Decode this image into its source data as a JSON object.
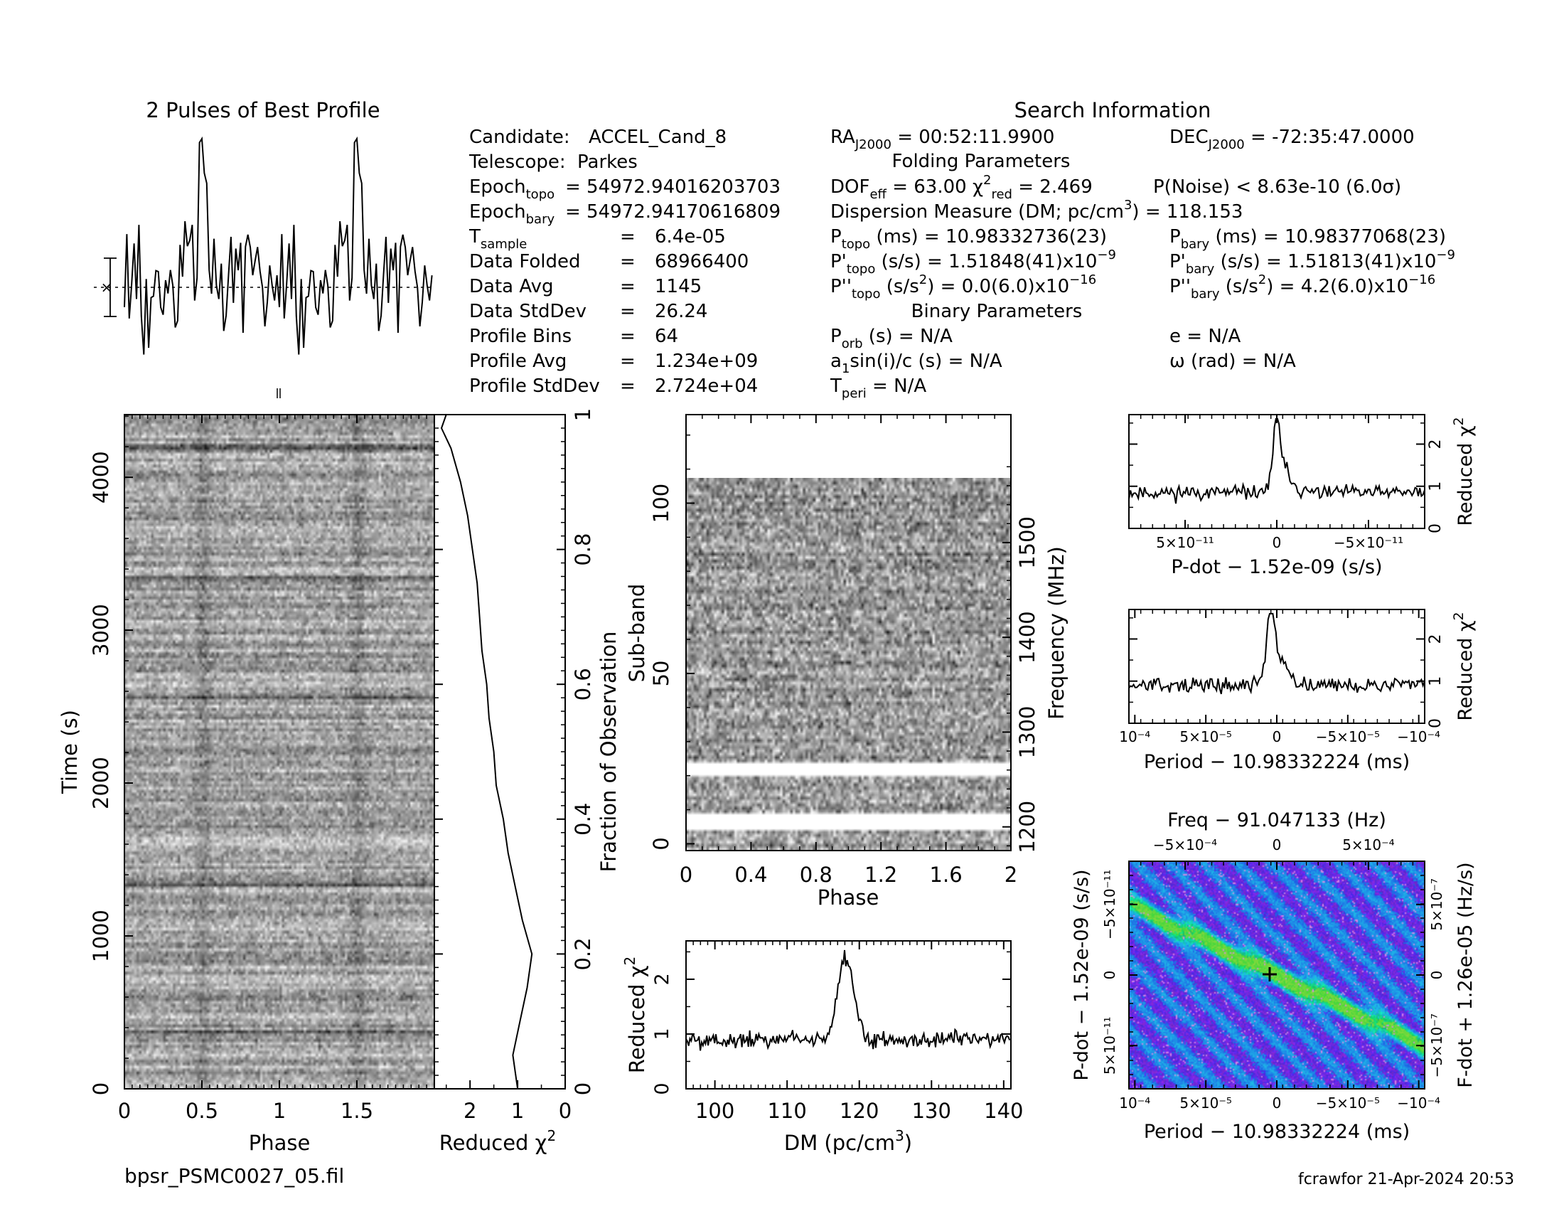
{
  "footer": {
    "filename": "bpsr_PSMC0027_05.fil",
    "user_stamp": "fcrawfor 21-Apr-2024 20:53"
  },
  "header_text": {
    "profile_title": "2 Pulses of Best Profile",
    "search_title": "Search Information",
    "folding_title": "Folding Parameters",
    "binary_title": "Binary Parameters"
  },
  "candidate_info": [
    {
      "label": "Candidate:",
      "value": "ACCEL_Cand_8"
    },
    {
      "label": "Telescope:",
      "value": "Parkes"
    },
    {
      "label": "Epoch",
      "sub": "topo",
      "eq": "=",
      "value": "54972.94016203703"
    },
    {
      "label": "Epoch",
      "sub": "bary",
      "eq": "=",
      "value": "54972.94170616809"
    },
    {
      "label": "T",
      "sub": "sample",
      "eq": "=",
      "value": "6.4e-05"
    },
    {
      "label": "Data Folded",
      "eq": "=",
      "value": "68966400"
    },
    {
      "label": "Data Avg",
      "eq": "=",
      "value": "1145"
    },
    {
      "label": "Data StdDev",
      "eq": "=",
      "value": "26.24"
    },
    {
      "label": "Profile Bins",
      "eq": "=",
      "value": "64"
    },
    {
      "label": "Profile Avg",
      "eq": "=",
      "value": "1.234e+09"
    },
    {
      "label": "Profile StdDev",
      "eq": "=",
      "value": "2.724e+04"
    }
  ],
  "search_info": {
    "ra": "00:52:11.9900",
    "dec": "-72:35:47.0000",
    "dof_eff": "63.00",
    "chi2_red": "2.469",
    "p_noise": "8.63e-10",
    "sigma": "(6.0σ)",
    "dm_label": "Dispersion Measure (DM; pc/cm",
    "dm_value": "118.153",
    "p_topo": "10.98332736(23)",
    "p_bary": "10.98377068(23)",
    "pd_topo": "1.51848(41)x10",
    "pd_bary": "1.51813(41)x10",
    "pdd_topo": "0.0(6.0)x10",
    "pdd_bary": "4.2(6.0)x10",
    "p_orb": "N/A",
    "e": "N/A",
    "a1sini": "N/A",
    "omega": "N/A",
    "t_peri": "N/A"
  },
  "axis_text": {
    "phase": "Phase",
    "time": "Time (s)",
    "reduced_chi2": "Reduced χ",
    "fraction": "Fraction of Observation",
    "subband": "Sub-band",
    "frequency": "Frequency (MHz)",
    "dm": "DM (pc/cm",
    "pdot_offset": "P-dot − 1.52e-09 (s/s)",
    "period_offset": "Period − 10.98332224 (ms)",
    "freq_offset": "Freq − 91.047133 (Hz)",
    "fdot_offset": "F-dot + 1.26e-05 (Hz/s)"
  },
  "chart_data": [
    {
      "type": "line",
      "title": "2 Pulses of Best Profile",
      "x_range": [
        0,
        2
      ],
      "peaks_phase": [
        0.5,
        1.5
      ],
      "profile_bins": 64
    },
    {
      "type": "heatmap",
      "xlabel": "Phase",
      "ylabel": "Time (s)",
      "x_range": [
        0,
        2
      ],
      "y_range": [
        0,
        4410
      ],
      "xticks": [
        "0",
        "0.5",
        "1",
        "1.5"
      ],
      "yticks": [
        "0",
        "1000",
        "2000",
        "3000",
        "4000"
      ],
      "colormap": "gray"
    },
    {
      "type": "line",
      "xlabel": "Reduced χ2",
      "ylabel": "Fraction of Observation",
      "xticks": [
        "2",
        "1",
        "0"
      ],
      "yticks": [
        "0",
        "0.2",
        "0.4",
        "0.6",
        "0.8",
        "1"
      ],
      "x_reversed": true,
      "fraction": [
        0.0,
        0.05,
        0.1,
        0.15,
        0.2,
        0.25,
        0.3,
        0.35,
        0.4,
        0.45,
        0.5,
        0.55,
        0.6,
        0.65,
        0.7,
        0.75,
        0.8,
        0.85,
        0.9,
        0.95,
        0.98,
        1.0
      ],
      "reduced_chi2": [
        1.0,
        1.1,
        0.95,
        0.8,
        0.7,
        0.9,
        1.05,
        1.2,
        1.3,
        1.45,
        1.5,
        1.6,
        1.65,
        1.75,
        1.8,
        1.85,
        1.95,
        2.05,
        2.2,
        2.4,
        2.6,
        2.5
      ]
    },
    {
      "type": "heatmap",
      "xlabel": "Phase",
      "ylabel": "Sub-band",
      "y2label": "Frequency (MHz)",
      "x_range": [
        0,
        2
      ],
      "y_range": [
        -2,
        126
      ],
      "xticks": [
        "0",
        "0.4",
        "0.8",
        "1.2",
        "1.6",
        "2"
      ],
      "yticks": [
        "0",
        "50",
        "100"
      ],
      "y2ticks": [
        "1200",
        "1300",
        "1400",
        "1500"
      ],
      "colormap": "gray",
      "masked_subbands": [
        [
          6,
          10
        ],
        [
          22,
          26
        ]
      ]
    },
    {
      "type": "line",
      "xlabel": "DM (pc/cm3)",
      "ylabel": "Reduced χ2",
      "x_range": [
        96,
        141
      ],
      "y_range": [
        0,
        2.7
      ],
      "xticks": [
        "100",
        "110",
        "120",
        "130",
        "140"
      ],
      "yticks": [
        "0",
        "1",
        "2"
      ],
      "peak_dm": 118.15,
      "peak_chi2": 2.45,
      "baseline_chi2": 0.9
    },
    {
      "type": "line",
      "xlabel": "P-dot − 1.52e-09 (s/s)",
      "ylabel": "Reduced χ2",
      "y_range": [
        0,
        2.7
      ],
      "yticks": [
        "0",
        "1",
        "2"
      ],
      "xticks": [
        "5×10⁻¹¹",
        "0",
        "−5×10⁻¹¹"
      ],
      "peak_chi2": 2.45,
      "baseline_chi2": 0.85
    },
    {
      "type": "line",
      "xlabel": "Period − 10.98332224 (ms)",
      "ylabel": "Reduced χ2",
      "y_range": [
        0,
        2.7
      ],
      "yticks": [
        "0",
        "1",
        "2"
      ],
      "xticks": [
        "10⁻⁴",
        "5×10⁻⁵",
        "0",
        "−5×10⁻⁵",
        "−10⁻⁴"
      ],
      "peak_chi2": 2.45,
      "baseline_chi2": 0.9
    },
    {
      "type": "heatmap",
      "title": "Freq − 91.047133 (Hz)",
      "xlabel": "Period − 10.98332224 (ms)",
      "ylabel": "P-dot − 1.52e-09 (s/s)",
      "y2label": "F-dot + 1.26e-05 (Hz/s)",
      "xticks": [
        "10⁻⁴",
        "5×10⁻⁵",
        "0",
        "−5×10⁻⁵",
        "−10⁻⁴"
      ],
      "x2ticks": [
        "−5×10⁻⁴",
        "0",
        "5×10⁻⁴"
      ],
      "yticks": [
        "5×10⁻¹¹",
        "0",
        "−5×10⁻¹¹"
      ],
      "y2ticks": [
        "−5×10⁻⁷",
        "0",
        "5×10⁻⁷"
      ],
      "colormap": "rainbow",
      "best_marker": "+"
    }
  ],
  "colors": {
    "ink": "#000000",
    "background": "#ffffff",
    "ppdot_base": "#2a4fd8",
    "ppdot_ridge": "#22c77a"
  }
}
